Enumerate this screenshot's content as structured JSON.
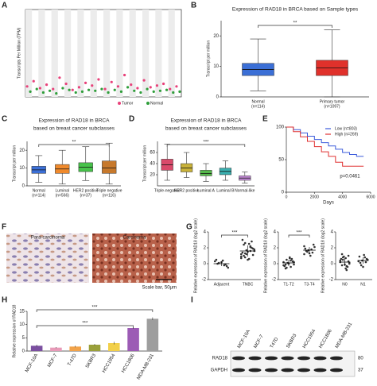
{
  "panel_labels": [
    "A",
    "B",
    "C",
    "D",
    "E",
    "F",
    "G",
    "H",
    "I"
  ],
  "chart_data": [
    {
      "type": "dot",
      "ylabel": "Transcripts Per Million (TPM)",
      "categories": [
        null,
        null,
        null,
        null,
        null,
        null,
        null,
        null,
        null,
        null,
        null,
        null,
        null,
        null,
        null,
        null,
        null,
        null,
        null,
        null,
        null,
        null,
        null,
        null
      ],
      "ylim": [
        0,
        100
      ],
      "series": [
        {
          "name": "Tumor",
          "color": "#e8417a",
          "values": [
            12,
            18,
            10,
            14,
            9,
            22,
            15,
            8,
            11,
            16,
            13,
            20,
            9,
            17,
            12,
            25,
            14,
            10,
            19,
            11,
            13,
            15,
            9,
            12
          ]
        },
        {
          "name": "Normal",
          "color": "#2e9e3a",
          "values": [
            6,
            9,
            5,
            7,
            4,
            10,
            8,
            5,
            6,
            8,
            7,
            9,
            5,
            8,
            6,
            11,
            7,
            5,
            9,
            6,
            7,
            8,
            5,
            6
          ]
        }
      ]
    },
    {
      "type": "box",
      "title": "Expression of RAD18 in BRCA based on Sample types",
      "ylabel": "Transcript per million",
      "categories": [
        "Normal",
        "Primary tumor"
      ],
      "n_labels": [
        "(n=114)",
        "(n=1097)"
      ],
      "colors": [
        "#3b6fd6",
        "#e0312b"
      ],
      "stats": [
        [
          2,
          7,
          9,
          11,
          19
        ],
        [
          0,
          7,
          9.5,
          12,
          22
        ]
      ],
      "ylim": [
        0,
        25
      ],
      "yticks": [
        0,
        10,
        20
      ],
      "annotations": [
        "**"
      ]
    },
    {
      "type": "box",
      "title": [
        "Expression of RAD18 in BRCA",
        "based on breast cancer subclasses"
      ],
      "ylabel": "Transcript per million",
      "categories": [
        "Normal",
        "Luminal",
        "HER2 positive",
        "Triple negative"
      ],
      "n_labels": [
        "(n=114)",
        "(n=566)",
        "(n=37)",
        "(n=116)"
      ],
      "colors": [
        "#3b6fd6",
        "#f08a2c",
        "#47c24a",
        "#c7792c"
      ],
      "stats": [
        [
          2,
          7,
          9,
          11,
          17
        ],
        [
          1,
          7,
          9.5,
          12,
          20
        ],
        [
          3,
          8,
          10.5,
          13,
          22
        ],
        [
          1,
          7,
          10,
          14,
          24
        ]
      ],
      "ylim": [
        0,
        25
      ],
      "yticks": [
        0,
        10,
        20
      ],
      "annotations": [
        "**"
      ]
    },
    {
      "type": "box",
      "title": [
        "Expression of RAD18 in BRCA",
        "based on breast cancer subclasses"
      ],
      "ylabel": "Transcript per million",
      "categories": [
        "Triple-negative",
        "HER2 positive",
        "Luminal A",
        "Luminal B",
        "Normal-like"
      ],
      "colors": [
        "#d94a6a",
        "#c9b23a",
        "#54b84a",
        "#3ab0b0",
        "#c58ad8"
      ],
      "stats": [
        [
          10,
          28,
          38,
          48,
          75
        ],
        [
          15,
          25,
          32,
          40,
          60
        ],
        [
          8,
          18,
          22,
          28,
          40
        ],
        [
          10,
          20,
          26,
          32,
          45
        ],
        [
          5,
          10,
          14,
          18,
          25
        ]
      ],
      "ylim": [
        0,
        80
      ],
      "yticks": [
        20,
        40,
        60
      ],
      "annotations": [
        "***"
      ]
    },
    {
      "type": "line",
      "xlabel": "Days",
      "x": [
        0,
        500,
        1000,
        1500,
        2000,
        2500,
        3000,
        3500,
        4000,
        4500,
        5000,
        5500
      ],
      "xlim": [
        0,
        6000
      ],
      "xticks": [
        0,
        2000,
        4000,
        6000
      ],
      "ylim": [
        0,
        100
      ],
      "yticks": [
        0,
        50,
        100
      ],
      "series": [
        {
          "name": "Low (n=803)",
          "color": "#3b5bdb",
          "values": [
            100,
            96,
            91,
            86,
            81,
            76,
            71,
            66,
            61,
            58,
            55,
            55
          ]
        },
        {
          "name": "High (n=269)",
          "color": "#e03131",
          "values": [
            100,
            93,
            85,
            78,
            70,
            62,
            55,
            46,
            40,
            40,
            40,
            40
          ]
        }
      ],
      "annotations": [
        "p=0.0461"
      ]
    },
    {
      "type": "strip",
      "ylabel": "Relative expression of RAD18 (log2 scale)",
      "categories": [
        "Adjacent",
        "TNBC"
      ],
      "ylim": [
        -2,
        4
      ],
      "yticks": [
        -2,
        0,
        2,
        4
      ],
      "points": [
        [
          0.3,
          -0.2,
          0.1,
          -0.5,
          0.4,
          0,
          -0.3,
          0.2,
          0.5,
          -0.1
        ],
        [
          1.2,
          2.1,
          0.8,
          1.6,
          2.5,
          1.0,
          1.9,
          0.5,
          1.4,
          2.8,
          1.7,
          0.9,
          2.2,
          1.3,
          1.8,
          0.6,
          2.4,
          1.1,
          1.5,
          3.0,
          2.0,
          1.2,
          0.7,
          1.6,
          2.6
        ]
      ],
      "means": [
        0,
        1.6
      ],
      "sd": [
        0.3,
        0.7
      ],
      "annotations": [
        "***"
      ]
    },
    {
      "type": "strip",
      "ylabel": "Relative expression of RAD18 (log2 scale)",
      "categories": [
        "T1-T2",
        "T3-T4"
      ],
      "ylim": [
        -2,
        4
      ],
      "yticks": [
        -2,
        0,
        2,
        4
      ],
      "points": [
        [
          0.2,
          -0.4,
          0.5,
          -0.1,
          0.8,
          -0.6,
          0.3,
          0,
          -0.3,
          0.6,
          0.1,
          -0.2,
          0.4,
          -0.5,
          0.2,
          0.7,
          -0.1,
          0.3
        ],
        [
          1.2,
          1.8,
          1.5,
          2.1,
          1.0,
          1.6,
          2.4,
          1.3,
          1.9,
          1.4,
          1.7,
          2.2
        ]
      ],
      "means": [
        0.1,
        1.7
      ],
      "sd": [
        0.4,
        0.4
      ],
      "annotations": [
        "***"
      ]
    },
    {
      "type": "strip",
      "ylabel": "Relative expression of RAD18 (log2 scale)",
      "categories": [
        "N0",
        "N1"
      ],
      "ylim": [
        -2,
        4
      ],
      "yticks": [
        -2,
        0,
        2,
        4
      ],
      "points": [
        [
          0.4,
          -0.3,
          0.8,
          0.1,
          -0.6,
          1.2,
          0.3,
          -0.1,
          0.6,
          -0.4,
          0.9,
          0.2,
          -0.8,
          0.5,
          0,
          0.7,
          -0.2,
          1.0
        ],
        [
          0.3,
          0.8,
          -0.2,
          0.5,
          1.1,
          0.1,
          0.6,
          -0.4,
          0.9,
          0.2,
          0.4
        ]
      ],
      "means": [
        0.2,
        0.4
      ],
      "sd": [
        0.5,
        0.4
      ]
    },
    {
      "type": "bar",
      "ylabel": "Relative expression of RAD18",
      "categories": [
        "MCF-10A",
        "MCF-7",
        "T-47D",
        "SKBR3",
        "HCC1954",
        "HCC1806",
        "MDA-MB-231"
      ],
      "values": [
        2.0,
        1.3,
        1.7,
        2.4,
        3.0,
        8.7,
        12.2
      ],
      "errors": [
        0.4,
        0.2,
        0.3,
        0.3,
        0.5,
        0.3,
        0.5
      ],
      "colors": [
        "#7b4fa0",
        "#e89ab8",
        "#f2a34a",
        "#9aa03a",
        "#f2d04a",
        "#9c5bb5",
        "#9e9e9e"
      ],
      "ylim": [
        0,
        15
      ],
      "yticks": [
        0,
        5,
        10,
        15
      ],
      "annotations": [
        "***",
        "***"
      ]
    }
  ],
  "ihc": {
    "labels": [
      "Para-carcinoma",
      "Carcinoma"
    ],
    "scale_bar": "Scale bar, 50μm"
  },
  "blot": {
    "lanes": [
      "MCF-10A",
      "MCF-7",
      "T47D",
      "SKBR3",
      "HCC1954",
      "HCC1806",
      "MDA-MB-231"
    ],
    "bands": [
      "RAD18",
      "GAPDH"
    ],
    "markers": [
      "80",
      "37"
    ]
  }
}
